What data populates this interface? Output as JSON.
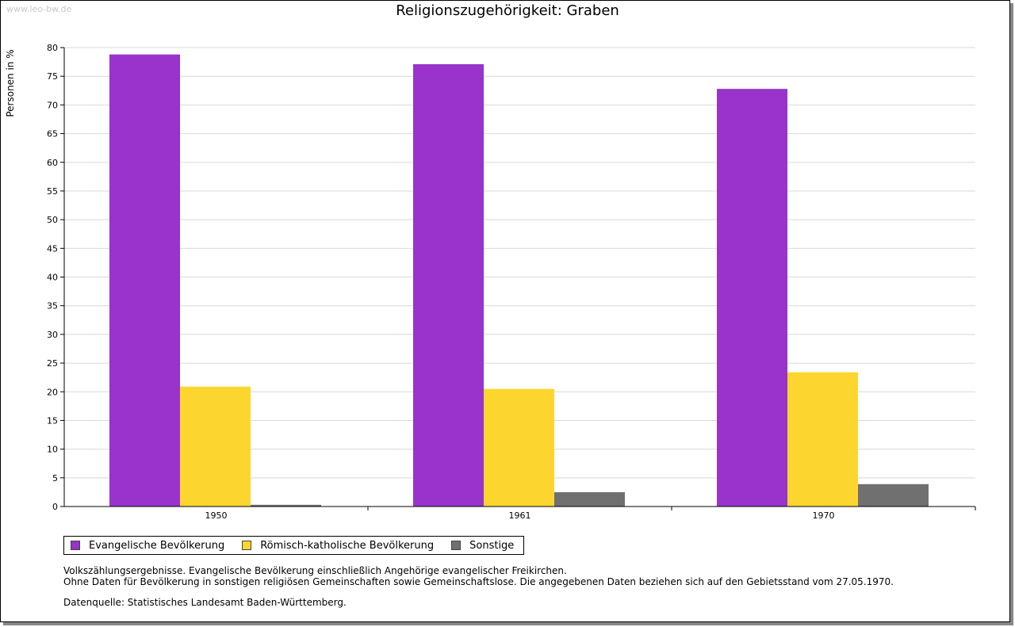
{
  "watermark": "www.leo-bw.de",
  "chart_data": {
    "type": "bar",
    "title": "Religionszugehörigkeit: Graben",
    "xlabel": "",
    "ylabel": "Personen in %",
    "categories": [
      "1950",
      "1961",
      "1970"
    ],
    "series": [
      {
        "name": "Evangelische Bevölkerung",
        "color": "#9933cc",
        "values": [
          78.8,
          77.1,
          72.8
        ]
      },
      {
        "name": "Römisch-katholische Bevölkerung",
        "color": "#fcd62e",
        "values": [
          20.9,
          20.5,
          23.4
        ]
      },
      {
        "name": "Sonstige",
        "color": "#707070",
        "values": [
          0.3,
          2.5,
          3.9
        ]
      }
    ],
    "ylim": [
      0,
      80
    ],
    "yticks": [
      0,
      5,
      10,
      15,
      20,
      25,
      30,
      35,
      40,
      45,
      50,
      55,
      60,
      65,
      70,
      75,
      80
    ],
    "grid": true,
    "legend_position": "bottom-left"
  },
  "notes": {
    "line1": "Volkszählungsergebnisse. Evangelische Bevölkerung einschließlich Angehörige evangelischer Freikirchen.",
    "line2": "Ohne Daten für Bevölkerung in sonstigen religiösen Gemeinschaften sowie Gemeinschaftslose. Die angegebenen Daten beziehen sich auf den Gebietsstand vom 27.05.1970.",
    "source": "Datenquelle: Statistisches Landesamt Baden-Württemberg."
  }
}
